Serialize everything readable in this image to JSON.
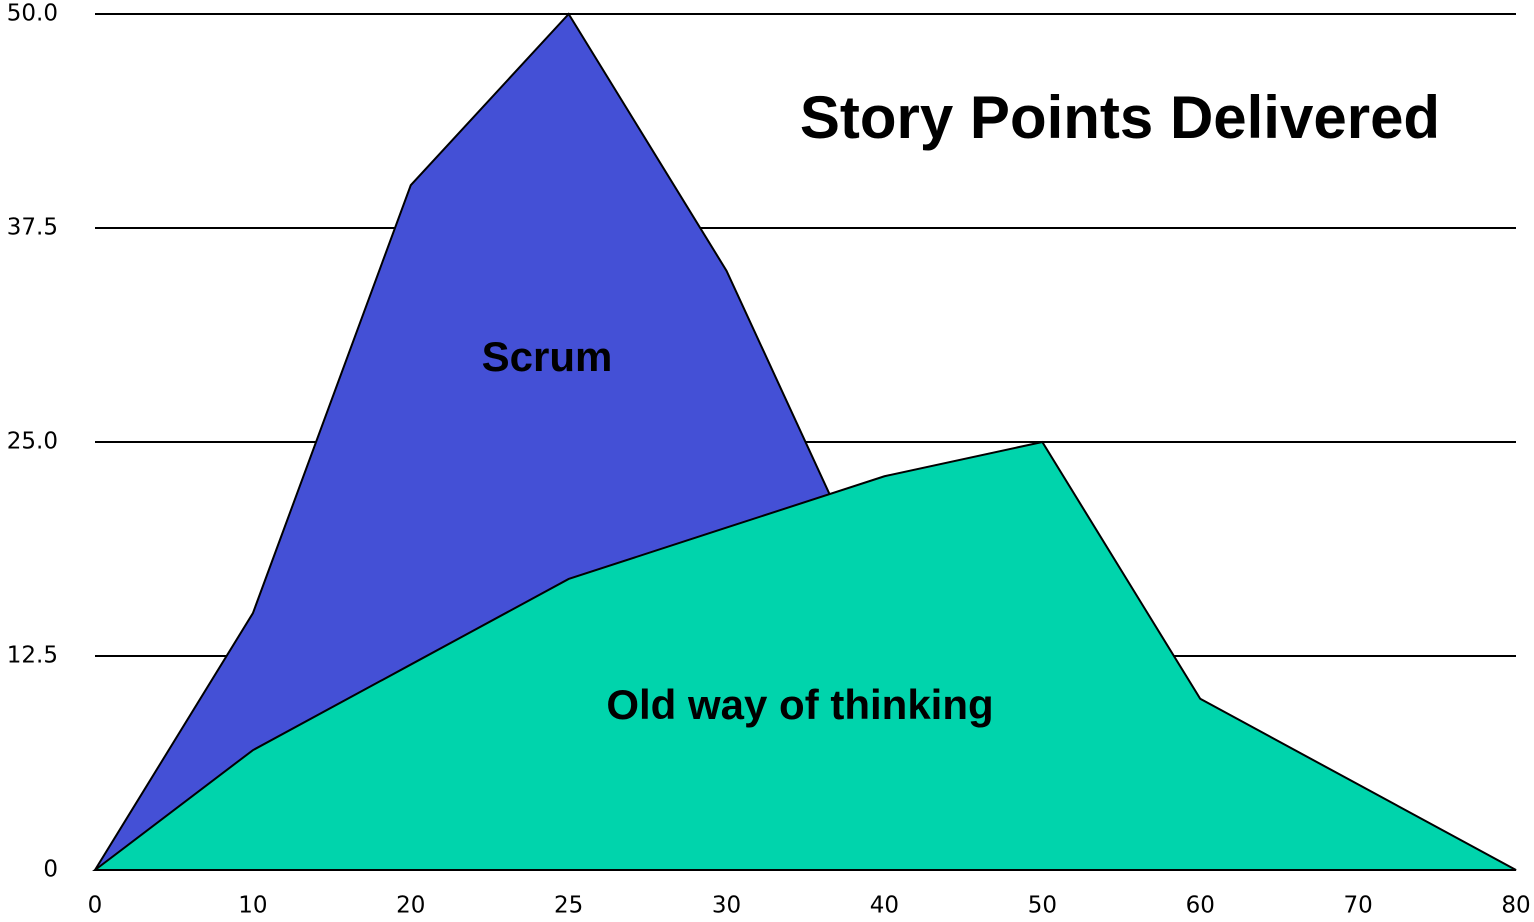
{
  "chart_data": {
    "type": "area",
    "title": "Story Points Delivered",
    "categories": [
      "0",
      "10",
      "20",
      "25",
      "30",
      "40",
      "50",
      "60",
      "70",
      "80"
    ],
    "series": [
      {
        "name": "Scrum",
        "color": "#4450d6",
        "values": [
          0,
          15,
          40,
          50,
          35,
          15,
          5,
          0,
          0,
          0
        ]
      },
      {
        "name": "Old way of thinking",
        "color": "#00d4ac",
        "values": [
          0,
          7,
          12,
          17,
          20,
          23,
          25,
          10,
          5,
          0
        ]
      }
    ],
    "ylim": [
      0,
      50
    ],
    "yticks": [
      0,
      12.5,
      {
        "value": 25,
        "label": "25.0"
      },
      37.5,
      {
        "value": 50,
        "label": "50.0"
      }
    ],
    "grid": true
  }
}
